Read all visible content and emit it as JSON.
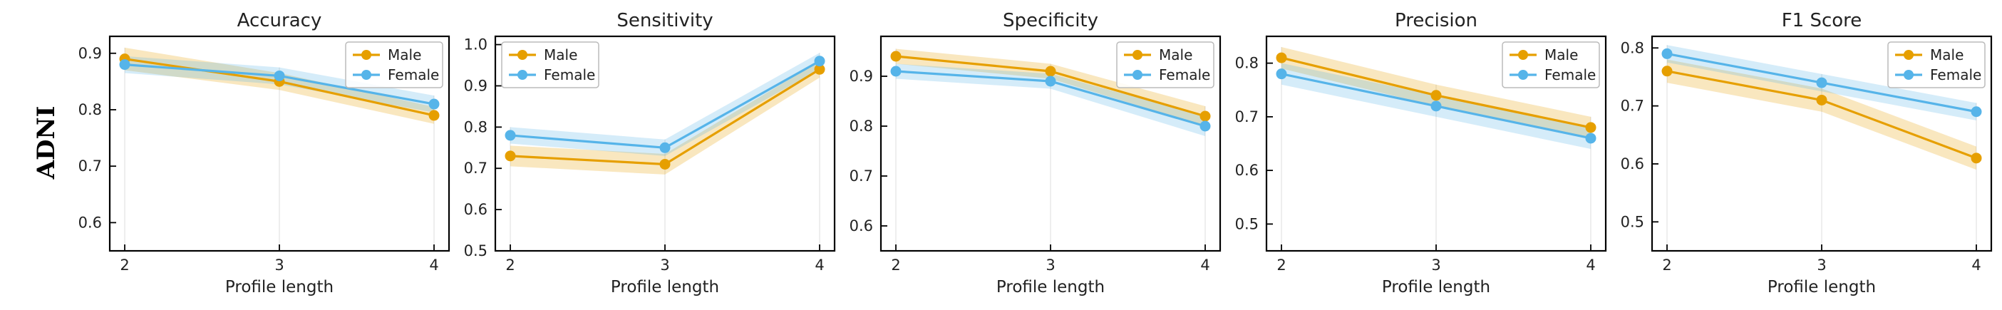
{
  "row_label": "ADNI",
  "colors": {
    "male": "#E69F00",
    "female": "#56B4E9"
  },
  "chart_data": [
    {
      "type": "line",
      "title": "Accuracy",
      "xlabel": "Profile length",
      "ylabel": "",
      "x": [
        2,
        3,
        4
      ],
      "xticks": [
        "2",
        "3",
        "4"
      ],
      "ylim": [
        0.55,
        0.93
      ],
      "yticks": [
        "0.6",
        "0.7",
        "0.8",
        "0.9"
      ],
      "legend": "top-right",
      "series": [
        {
          "name": "Male",
          "values": [
            0.89,
            0.85,
            0.79
          ],
          "band": [
            0.02,
            0.015,
            0.015
          ]
        },
        {
          "name": "Female",
          "values": [
            0.88,
            0.86,
            0.81
          ],
          "band": [
            0.015,
            0.015,
            0.015
          ]
        }
      ]
    },
    {
      "type": "line",
      "title": "Sensitivity",
      "xlabel": "Profile length",
      "ylabel": "",
      "x": [
        2,
        3,
        4
      ],
      "xticks": [
        "2",
        "3",
        "4"
      ],
      "ylim": [
        0.5,
        1.02
      ],
      "yticks": [
        "0.5",
        "0.6",
        "0.7",
        "0.8",
        "0.9",
        "1.0"
      ],
      "legend": "top-left",
      "series": [
        {
          "name": "Male",
          "values": [
            0.73,
            0.71,
            0.94
          ],
          "band": [
            0.025,
            0.025,
            0.02
          ]
        },
        {
          "name": "Female",
          "values": [
            0.78,
            0.75,
            0.96
          ],
          "band": [
            0.02,
            0.02,
            0.02
          ]
        }
      ]
    },
    {
      "type": "line",
      "title": "Specificity",
      "xlabel": "Profile length",
      "ylabel": "",
      "x": [
        2,
        3,
        4
      ],
      "xticks": [
        "2",
        "3",
        "4"
      ],
      "ylim": [
        0.55,
        0.98
      ],
      "yticks": [
        "0.6",
        "0.7",
        "0.8",
        "0.9"
      ],
      "legend": "top-right",
      "series": [
        {
          "name": "Male",
          "values": [
            0.94,
            0.91,
            0.82
          ],
          "band": [
            0.015,
            0.015,
            0.02
          ]
        },
        {
          "name": "Female",
          "values": [
            0.91,
            0.89,
            0.8
          ],
          "band": [
            0.015,
            0.015,
            0.02
          ]
        }
      ]
    },
    {
      "type": "line",
      "title": "Precision",
      "xlabel": "Profile length",
      "ylabel": "",
      "x": [
        2,
        3,
        4
      ],
      "xticks": [
        "2",
        "3",
        "4"
      ],
      "ylim": [
        0.45,
        0.85
      ],
      "yticks": [
        "0.5",
        "0.6",
        "0.7",
        "0.8"
      ],
      "legend": "top-right",
      "series": [
        {
          "name": "Male",
          "values": [
            0.81,
            0.74,
            0.68
          ],
          "band": [
            0.02,
            0.02,
            0.02
          ]
        },
        {
          "name": "Female",
          "values": [
            0.78,
            0.72,
            0.66
          ],
          "band": [
            0.02,
            0.02,
            0.02
          ]
        }
      ]
    },
    {
      "type": "line",
      "title": "F1 Score",
      "xlabel": "Profile length",
      "ylabel": "",
      "x": [
        2,
        3,
        4
      ],
      "xticks": [
        "2",
        "3",
        "4"
      ],
      "ylim": [
        0.45,
        0.82
      ],
      "yticks": [
        "0.5",
        "0.6",
        "0.7",
        "0.8"
      ],
      "legend": "top-right",
      "series": [
        {
          "name": "Male",
          "values": [
            0.76,
            0.71,
            0.61
          ],
          "band": [
            0.02,
            0.02,
            0.02
          ]
        },
        {
          "name": "Female",
          "values": [
            0.79,
            0.74,
            0.69
          ],
          "band": [
            0.015,
            0.015,
            0.015
          ]
        }
      ]
    }
  ]
}
